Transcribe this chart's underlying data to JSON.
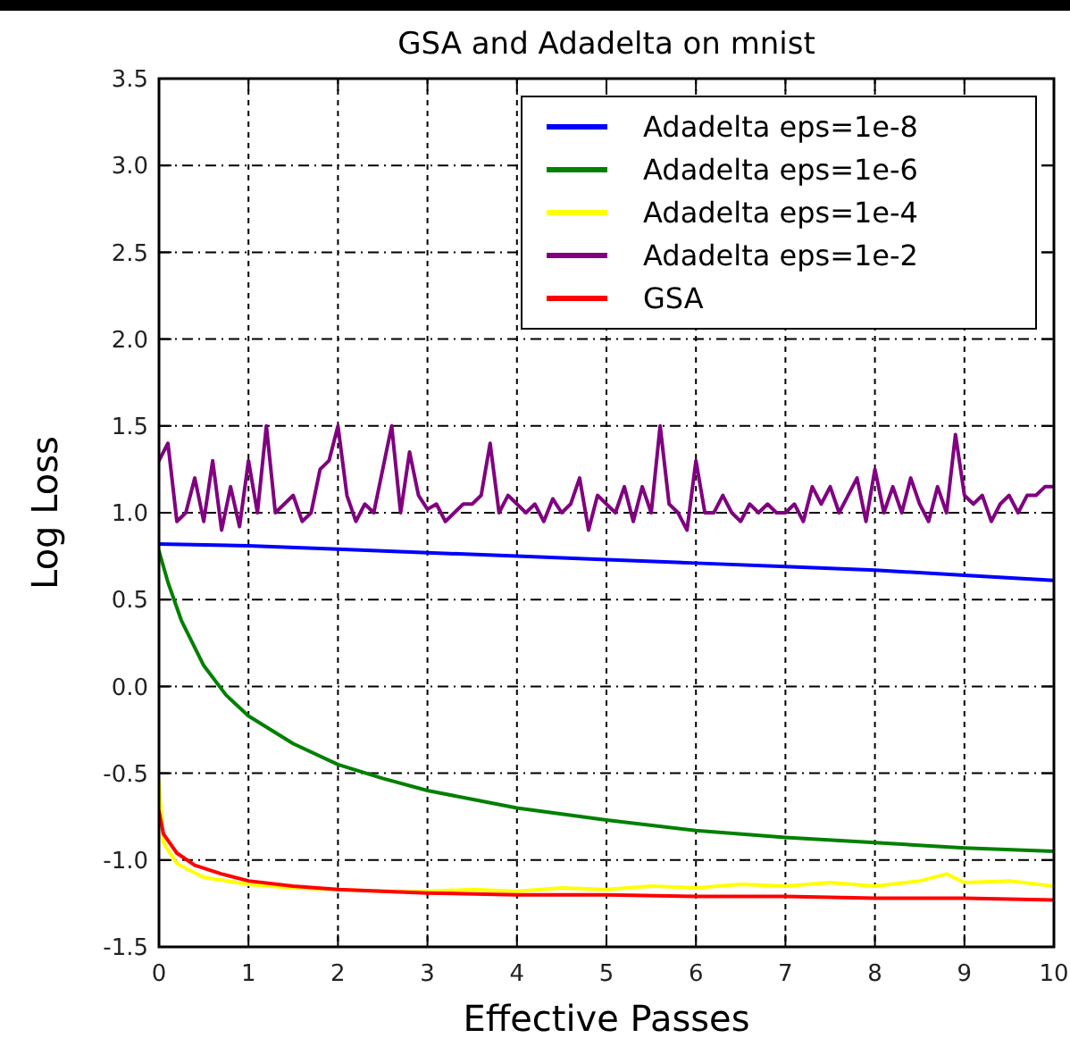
{
  "chart_data": {
    "type": "line",
    "title": "GSA and Adadelta on mnist",
    "xlabel": "Effective Passes",
    "ylabel": "Log Loss",
    "xlim": [
      0,
      10
    ],
    "xticks": [
      0,
      1,
      2,
      3,
      4,
      5,
      6,
      7,
      8,
      9,
      10
    ],
    "ylim": [
      -1.5,
      3.5
    ],
    "yticks": [
      {
        "value": -1.5,
        "label": "-1.5"
      },
      {
        "value": -1,
        "label": "-1.0"
      },
      {
        "value": -0.5,
        "label": "-0.5"
      },
      {
        "value": 0,
        "label": "0.0"
      },
      {
        "value": 0.5,
        "label": "0.5"
      },
      {
        "value": 1,
        "label": "1.0"
      },
      {
        "value": 1.5,
        "label": "1.5"
      },
      {
        "value": 2,
        "label": "2.0"
      },
      {
        "value": 2.5,
        "label": "2.5"
      },
      {
        "value": 3,
        "label": "3.0"
      },
      {
        "value": 3.5,
        "label": "3.5"
      }
    ],
    "grid": true,
    "legend": "top right",
    "line_style": "solid",
    "marker": "none",
    "series": [
      {
        "name": "Adadelta eps=1e-8",
        "color": "#0000ff",
        "x": [
          0,
          1,
          2,
          3,
          4,
          5,
          6,
          7,
          8,
          9,
          10
        ],
        "values": [
          0.82,
          0.81,
          0.79,
          0.77,
          0.75,
          0.73,
          0.71,
          0.69,
          0.67,
          0.64,
          0.61
        ]
      },
      {
        "name": "Adadelta eps=1e-6",
        "color": "#008000",
        "x": [
          0,
          0.1,
          0.25,
          0.5,
          0.75,
          1,
          1.5,
          2,
          2.5,
          3,
          3.5,
          4,
          5,
          6,
          7,
          8,
          9,
          10
        ],
        "values": [
          0.78,
          0.6,
          0.38,
          0.12,
          -0.05,
          -0.17,
          -0.33,
          -0.45,
          -0.53,
          -0.6,
          -0.65,
          -0.7,
          -0.77,
          -0.83,
          -0.87,
          -0.9,
          -0.93,
          -0.95
        ]
      },
      {
        "name": "Adadelta eps=1e-4",
        "color": "#ffff00",
        "x": [
          0,
          0.05,
          0.2,
          0.5,
          1,
          1.5,
          2,
          2.5,
          3,
          3.5,
          4,
          4.5,
          5,
          5.5,
          6,
          6.5,
          7,
          7.5,
          8,
          8.5,
          8.8,
          9,
          9.5,
          10
        ],
        "values": [
          -0.55,
          -0.9,
          -1.02,
          -1.1,
          -1.14,
          -1.16,
          -1.17,
          -1.18,
          -1.18,
          -1.17,
          -1.18,
          -1.16,
          -1.17,
          -1.15,
          -1.16,
          -1.14,
          -1.15,
          -1.13,
          -1.15,
          -1.12,
          -1.08,
          -1.13,
          -1.12,
          -1.15
        ]
      },
      {
        "name": "Adadelta eps=1e-2",
        "color": "#800080",
        "x": [
          0,
          0.1,
          0.2,
          0.3,
          0.4,
          0.5,
          0.6,
          0.7,
          0.8,
          0.9,
          1,
          1.1,
          1.2,
          1.3,
          1.4,
          1.5,
          1.6,
          1.7,
          1.8,
          1.9,
          2,
          2.1,
          2.2,
          2.3,
          2.4,
          2.5,
          2.6,
          2.7,
          2.8,
          2.9,
          3,
          3.1,
          3.2,
          3.3,
          3.4,
          3.5,
          3.6,
          3.7,
          3.8,
          3.9,
          4,
          4.1,
          4.2,
          4.3,
          4.4,
          4.5,
          4.6,
          4.7,
          4.8,
          4.9,
          5,
          5.1,
          5.2,
          5.3,
          5.4,
          5.5,
          5.6,
          5.7,
          5.8,
          5.9,
          6,
          6.1,
          6.2,
          6.3,
          6.4,
          6.5,
          6.6,
          6.7,
          6.8,
          6.9,
          7,
          7.1,
          7.2,
          7.3,
          7.4,
          7.5,
          7.6,
          7.7,
          7.8,
          7.9,
          8,
          8.1,
          8.2,
          8.3,
          8.4,
          8.5,
          8.6,
          8.7,
          8.8,
          8.9,
          9,
          9.1,
          9.2,
          9.3,
          9.4,
          9.5,
          9.6,
          9.7,
          9.8,
          9.9,
          10
        ],
        "values": [
          1.3,
          1.4,
          0.95,
          1.0,
          1.2,
          0.95,
          1.3,
          0.9,
          1.15,
          0.92,
          1.3,
          1.0,
          1.5,
          1.0,
          1.05,
          1.1,
          0.95,
          1.0,
          1.25,
          1.3,
          1.5,
          1.1,
          0.95,
          1.05,
          1.0,
          1.25,
          1.5,
          1.0,
          1.35,
          1.1,
          1.02,
          1.05,
          0.95,
          1.0,
          1.05,
          1.05,
          1.1,
          1.4,
          1.0,
          1.1,
          1.05,
          1.0,
          1.05,
          0.95,
          1.08,
          1.0,
          1.05,
          1.2,
          0.9,
          1.1,
          1.05,
          1.0,
          1.15,
          0.95,
          1.15,
          1.0,
          1.5,
          1.05,
          1.0,
          0.9,
          1.3,
          1.0,
          1.0,
          1.1,
          1.0,
          0.95,
          1.05,
          1.0,
          1.05,
          1.0,
          1.0,
          1.05,
          0.95,
          1.15,
          1.05,
          1.15,
          1.0,
          1.1,
          1.2,
          0.95,
          1.25,
          1.0,
          1.15,
          1.0,
          1.2,
          1.05,
          0.95,
          1.15,
          1.0,
          1.45,
          1.1,
          1.05,
          1.1,
          0.95,
          1.05,
          1.1,
          1.0,
          1.1,
          1.1,
          1.15,
          1.15
        ]
      },
      {
        "name": "GSA",
        "color": "#ff0000",
        "x": [
          0,
          0.05,
          0.2,
          0.4,
          0.7,
          1,
          1.5,
          2,
          3,
          4,
          5,
          6,
          7,
          8,
          9,
          10
        ],
        "values": [
          -0.72,
          -0.85,
          -0.96,
          -1.03,
          -1.08,
          -1.12,
          -1.15,
          -1.17,
          -1.19,
          -1.2,
          -1.2,
          -1.21,
          -1.21,
          -1.22,
          -1.22,
          -1.23
        ]
      }
    ]
  }
}
